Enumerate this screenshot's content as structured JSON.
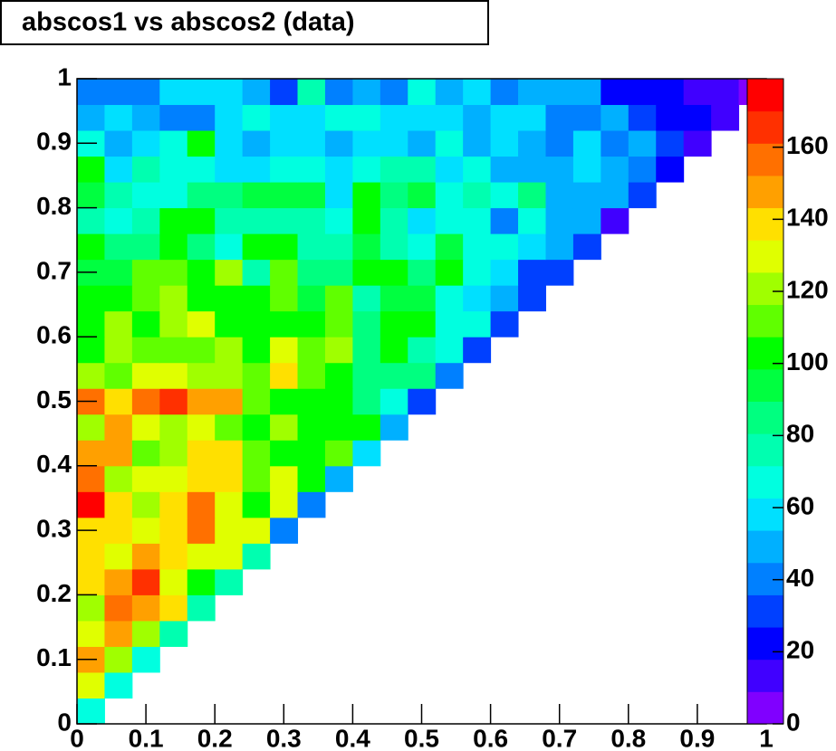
{
  "chart_data": {
    "type": "heatmap",
    "title": "abscos1 vs abscos2 (data)",
    "xbins": [
      0,
      0.04,
      0.08,
      0.12,
      0.16,
      0.2,
      0.24,
      0.28,
      0.32,
      0.36,
      0.4,
      0.44,
      0.48,
      0.52,
      0.56,
      0.6,
      0.64,
      0.68,
      0.72,
      0.76,
      0.8,
      0.84,
      0.88,
      0.92,
      0.96,
      1
    ],
    "ybins": [
      0,
      0.04,
      0.08,
      0.12,
      0.16,
      0.2,
      0.24,
      0.28,
      0.32,
      0.36,
      0.4,
      0.44,
      0.48,
      0.52,
      0.56,
      0.6,
      0.64,
      0.68,
      0.72,
      0.76,
      0.8,
      0.84,
      0.88,
      0.92,
      0.96,
      1
    ],
    "values": [
      [
        70
      ],
      [
        132,
        67
      ],
      [
        150,
        120,
        67
      ],
      [
        132,
        150,
        120,
        80
      ],
      [
        120,
        157,
        150,
        140,
        80
      ],
      [
        140,
        150,
        166,
        132,
        103,
        80
      ],
      [
        140,
        132,
        150,
        140,
        132,
        132,
        80
      ],
      [
        140,
        140,
        132,
        140,
        157,
        130,
        130,
        42
      ],
      [
        176,
        140,
        120,
        140,
        157,
        132,
        103,
        132,
        42
      ],
      [
        158,
        120,
        132,
        132,
        140,
        140,
        112,
        132,
        100,
        50
      ],
      [
        150,
        150,
        112,
        120,
        140,
        140,
        112,
        100,
        100,
        112,
        58
      ],
      [
        120,
        150,
        132,
        120,
        132,
        112,
        100,
        120,
        103,
        100,
        100,
        50
      ],
      [
        160,
        140,
        160,
        166,
        150,
        150,
        112,
        100,
        100,
        100,
        85,
        70,
        30
      ],
      [
        120,
        112,
        132,
        132,
        120,
        120,
        112,
        140,
        112,
        100,
        82,
        82,
        82,
        42
      ],
      [
        100,
        120,
        112,
        112,
        112,
        120,
        100,
        132,
        110,
        120,
        85,
        100,
        80,
        70,
        32
      ],
      [
        100,
        120,
        103,
        120,
        132,
        100,
        100,
        100,
        100,
        110,
        85,
        100,
        100,
        70,
        70,
        32
      ],
      [
        100,
        103,
        110,
        118,
        100,
        100,
        100,
        110,
        95,
        110,
        80,
        94,
        94,
        70,
        58,
        50,
        30
      ],
      [
        90,
        90,
        110,
        110,
        100,
        120,
        76,
        110,
        82,
        82,
        100,
        100,
        85,
        103,
        70,
        58,
        30,
        30
      ],
      [
        100,
        85,
        85,
        100,
        85,
        70,
        103,
        103,
        80,
        80,
        94,
        80,
        67,
        90,
        67,
        67,
        58,
        50,
        30
      ],
      [
        76,
        67,
        76,
        103,
        103,
        80,
        80,
        80,
        80,
        67,
        103,
        80,
        58,
        67,
        67,
        40,
        67,
        50,
        50,
        14
      ],
      [
        94,
        76,
        67,
        67,
        85,
        85,
        94,
        94,
        94,
        58,
        103,
        85,
        94,
        67,
        76,
        67,
        85,
        50,
        50,
        50,
        32
      ],
      [
        103,
        58,
        76,
        67,
        67,
        58,
        58,
        67,
        67,
        58,
        67,
        76,
        76,
        58,
        67,
        50,
        50,
        50,
        58,
        50,
        40,
        22
      ],
      [
        67,
        50,
        58,
        67,
        103,
        58,
        50,
        58,
        58,
        50,
        58,
        58,
        50,
        67,
        50,
        58,
        50,
        40,
        58,
        40,
        50,
        32,
        14
      ],
      [
        50,
        58,
        50,
        40,
        40,
        58,
        67,
        58,
        58,
        67,
        67,
        58,
        58,
        58,
        50,
        58,
        58,
        40,
        40,
        50,
        32,
        22,
        22,
        14
      ],
      [
        40,
        40,
        40,
        58,
        58,
        58,
        45,
        32,
        76,
        40,
        50,
        40,
        67,
        50,
        58,
        40,
        50,
        50,
        50,
        22,
        22,
        22,
        14,
        14,
        5
      ]
    ],
    "xlim": [
      0,
      1
    ],
    "ylim": [
      0,
      1
    ],
    "xticks": [
      0,
      0.1,
      0.2,
      0.3,
      0.4,
      0.5,
      0.6,
      0.7,
      0.8,
      0.9,
      1
    ],
    "yticks": [
      0,
      0.1,
      0.2,
      0.3,
      0.4,
      0.5,
      0.6,
      0.7,
      0.8,
      0.9,
      1
    ],
    "zlim": [
      0,
      179
    ],
    "zticks": [
      0,
      20,
      40,
      60,
      80,
      100,
      120,
      140,
      160
    ],
    "palette": [
      "#8000ff",
      "#4000ff",
      "#0000ff",
      "#0040ff",
      "#0080ff",
      "#00b0ff",
      "#00e0ff",
      "#00ffe0",
      "#00ffb0",
      "#00ff80",
      "#00ff40",
      "#00ff00",
      "#60ff00",
      "#a0ff00",
      "#e0ff00",
      "#ffe000",
      "#ffa000",
      "#ff7000",
      "#ff3000",
      "#ff0000"
    ]
  }
}
